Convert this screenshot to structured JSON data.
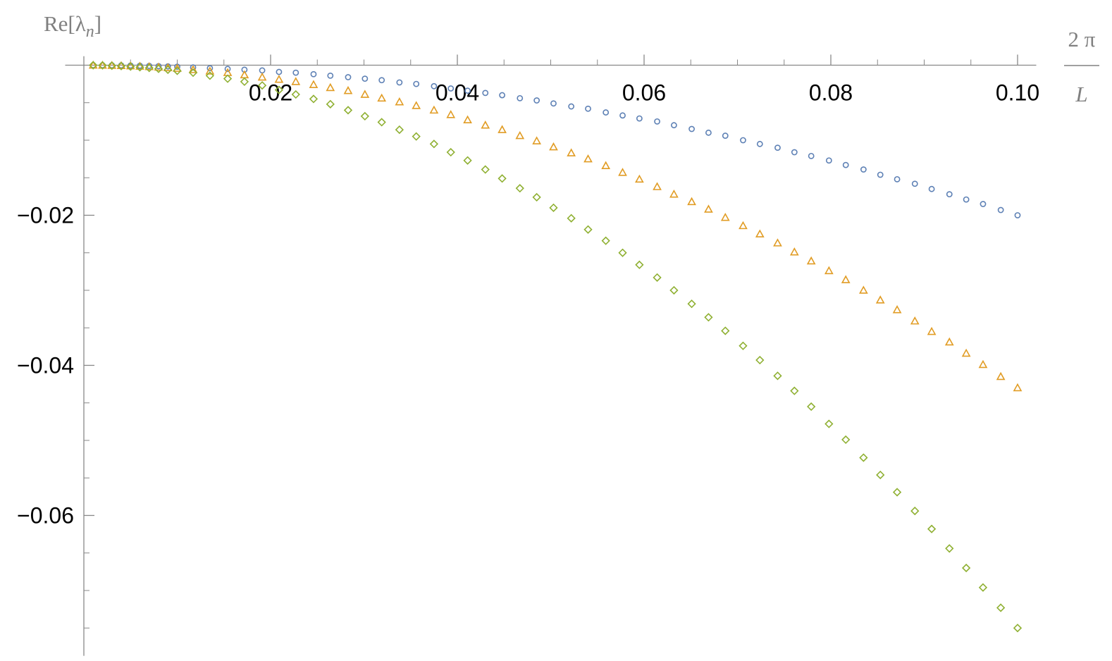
{
  "chart_data": {
    "type": "scatter",
    "y_label": {
      "main": "Re[λ",
      "subscript": "n",
      "close": "]"
    },
    "x_label": {
      "numerator": "2 π",
      "denominator": "L"
    },
    "xlim": [
      -0.002,
      0.102
    ],
    "ylim": [
      -0.0787,
      0.0012
    ],
    "xticks": [
      {
        "value": 0.02,
        "label": "0.02"
      },
      {
        "value": 0.04,
        "label": "0.04"
      },
      {
        "value": 0.06,
        "label": "0.06"
      },
      {
        "value": 0.08,
        "label": "0.08"
      },
      {
        "value": 0.1,
        "label": "0.10"
      }
    ],
    "xminorticks": [
      0.005,
      0.01,
      0.015,
      0.025,
      0.03,
      0.035,
      0.045,
      0.05,
      0.055,
      0.065,
      0.07,
      0.075,
      0.085,
      0.09,
      0.095
    ],
    "yticks": [
      {
        "value": -0.02,
        "label": "−0.02"
      },
      {
        "value": -0.04,
        "label": "−0.04"
      },
      {
        "value": -0.06,
        "label": "−0.06"
      }
    ],
    "yminorticks": [
      -0.005,
      -0.01,
      -0.015,
      -0.025,
      -0.03,
      -0.035,
      -0.045,
      -0.05,
      -0.055,
      -0.065,
      -0.07,
      -0.075
    ],
    "grid": false,
    "x": [
      0.001,
      0.002,
      0.003,
      0.004,
      0.005,
      0.006,
      0.007,
      0.008,
      0.009,
      0.01,
      0.0117,
      0.0135,
      0.0154,
      0.0172,
      0.0191,
      0.0209,
      0.0227,
      0.0246,
      0.0264,
      0.0283,
      0.0301,
      0.0319,
      0.0338,
      0.0356,
      0.0375,
      0.0393,
      0.0411,
      0.043,
      0.0448,
      0.0467,
      0.0485,
      0.0503,
      0.0522,
      0.054,
      0.0559,
      0.0577,
      0.0595,
      0.0614,
      0.0632,
      0.0651,
      0.0669,
      0.0687,
      0.0706,
      0.0724,
      0.0743,
      0.0761,
      0.0779,
      0.0798,
      0.0816,
      0.0835,
      0.0853,
      0.0871,
      0.089,
      0.0908,
      0.0927,
      0.0945,
      0.0963,
      0.0982,
      0.1
    ],
    "series": [
      {
        "color": "#5e81b5",
        "marker": "circle",
        "values": [
          -2e-06,
          -8e-06,
          -1.8e-05,
          -3.2e-05,
          -5e-05,
          -7.2e-05,
          -9.8e-05,
          -0.000128,
          -0.000162,
          -0.0002,
          -0.0003,
          -0.0004,
          -0.0005,
          -0.0006,
          -0.0007,
          -0.0009,
          -0.001,
          -0.0012,
          -0.0014,
          -0.0016,
          -0.0018,
          -0.002,
          -0.0023,
          -0.0025,
          -0.0028,
          -0.0031,
          -0.0034,
          -0.0037,
          -0.004,
          -0.0044,
          -0.0047,
          -0.0051,
          -0.0055,
          -0.0058,
          -0.0063,
          -0.0067,
          -0.0071,
          -0.0075,
          -0.008,
          -0.0085,
          -0.009,
          -0.0094,
          -0.01,
          -0.0105,
          -0.011,
          -0.0116,
          -0.0121,
          -0.0127,
          -0.0133,
          -0.0139,
          -0.0146,
          -0.0152,
          -0.0158,
          -0.0165,
          -0.0172,
          -0.0179,
          -0.0185,
          -0.0193,
          -0.02
        ]
      },
      {
        "color": "#e19c24",
        "marker": "triangle",
        "values": [
          -4.3e-06,
          -1.72e-05,
          -3.87e-05,
          -6.88e-05,
          -0.0001075,
          -0.0001548,
          -0.0002107,
          -0.0002752,
          -0.0003483,
          -0.00043,
          -0.0006,
          -0.0008,
          -0.001,
          -0.0013,
          -0.0016,
          -0.0019,
          -0.0022,
          -0.0026,
          -0.003,
          -0.0034,
          -0.0039,
          -0.0044,
          -0.0049,
          -0.0054,
          -0.006,
          -0.0066,
          -0.0073,
          -0.008,
          -0.0086,
          -0.0094,
          -0.0101,
          -0.0109,
          -0.0117,
          -0.0125,
          -0.0134,
          -0.0143,
          -0.0152,
          -0.0162,
          -0.0172,
          -0.0182,
          -0.0192,
          -0.0203,
          -0.0214,
          -0.0225,
          -0.0237,
          -0.0249,
          -0.0261,
          -0.0274,
          -0.0286,
          -0.03,
          -0.0313,
          -0.0326,
          -0.0341,
          -0.0355,
          -0.0369,
          -0.0384,
          -0.0399,
          -0.0415,
          -0.043
        ]
      },
      {
        "color": "#8fb032",
        "marker": "diamond",
        "values": [
          -7.5e-06,
          -3e-05,
          -6.75e-05,
          -0.00012,
          -0.0001875,
          -0.00027,
          -0.0003675,
          -0.00048,
          -0.0006075,
          -0.00075,
          -0.001,
          -0.0014,
          -0.0018,
          -0.0022,
          -0.0027,
          -0.0033,
          -0.0039,
          -0.0045,
          -0.0052,
          -0.006,
          -0.0068,
          -0.0076,
          -0.0086,
          -0.0095,
          -0.0105,
          -0.0116,
          -0.0127,
          -0.0139,
          -0.0151,
          -0.0164,
          -0.0176,
          -0.019,
          -0.0204,
          -0.0219,
          -0.0234,
          -0.025,
          -0.0266,
          -0.0283,
          -0.03,
          -0.0318,
          -0.0336,
          -0.0354,
          -0.0374,
          -0.0393,
          -0.0414,
          -0.0434,
          -0.0455,
          -0.0478,
          -0.0499,
          -0.0523,
          -0.0546,
          -0.0569,
          -0.0594,
          -0.0618,
          -0.0644,
          -0.067,
          -0.0696,
          -0.0723,
          -0.075
        ]
      }
    ]
  }
}
